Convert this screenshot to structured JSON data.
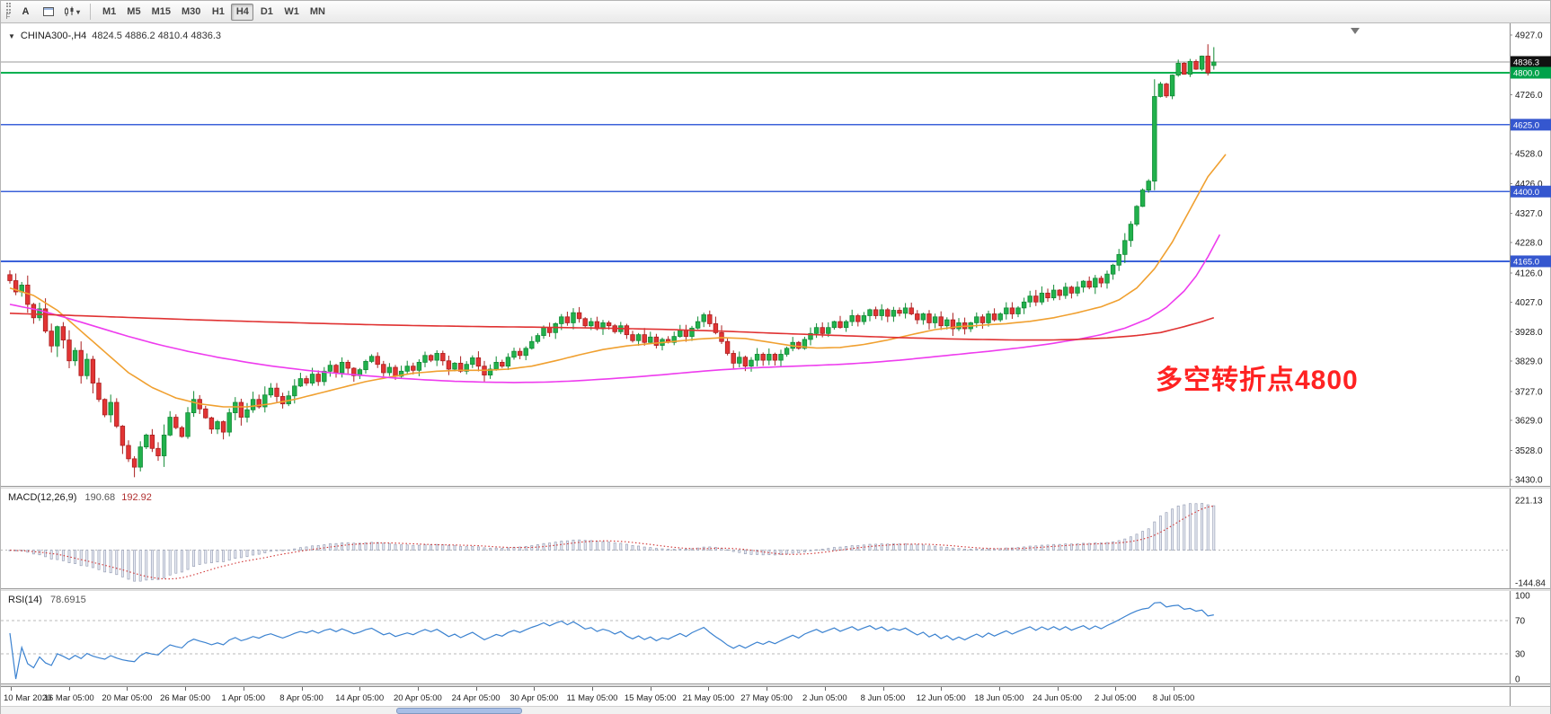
{
  "toolbar": {
    "grip_label": "F",
    "text_tool_label": "A",
    "timeframes": [
      "M1",
      "M5",
      "M15",
      "M30",
      "H1",
      "H4",
      "D1",
      "W1",
      "MN"
    ],
    "active_timeframe": "H4"
  },
  "chart": {
    "symbol_title": "CHINA300-,H4",
    "ohlc_text": "4824.5 4886.2 4810.4 4836.3",
    "annotation": {
      "text": "多空转折点4800",
      "color": "#ff2222"
    }
  },
  "macd_panel": {
    "label": "MACD(12,26,9)",
    "value_main": "190.68",
    "value_signal": "192.92",
    "axis_max": "221.13",
    "axis_min": "-144.84"
  },
  "rsi_panel": {
    "label": "RSI(14)",
    "value": "78.6915",
    "axis_labels": [
      "100",
      "70",
      "30",
      "0"
    ]
  },
  "chart_data": {
    "type": "candlestick",
    "symbol": "CHINA300-",
    "timeframe": "H4",
    "last_ohlc": {
      "open": 4824.5,
      "high": 4886.2,
      "low": 4810.4,
      "close": 4836.3
    },
    "open_first": 4120,
    "y_axis": {
      "max": 4927,
      "min": 3430,
      "ticks": [
        "4927.0",
        "4826.0",
        "4726.0",
        "4625.0",
        "4528.0",
        "4426.0",
        "4327.0",
        "4228.0",
        "4126.0",
        "4027.0",
        "3928.0",
        "3829.0",
        "3727.0",
        "3629.0",
        "3528.0",
        "3430.0"
      ]
    },
    "x_labels": [
      "10 Mar 2020",
      "16 Mar 05:00",
      "20 Mar 05:00",
      "26 Mar 05:00",
      "1 Apr 05:00",
      "8 Apr 05:00",
      "14 Apr 05:00",
      "20 Apr 05:00",
      "24 Apr 05:00",
      "30 Apr 05:00",
      "11 May 05:00",
      "15 May 05:00",
      "21 May 05:00",
      "27 May 05:00",
      "2 Jun 05:00",
      "8 Jun 05:00",
      "12 Jun 05:00",
      "18 Jun 05:00",
      "24 Jun 05:00",
      "2 Jul 05:00",
      "8 Jul 05:00"
    ],
    "closes": [
      4100,
      4062,
      4085,
      4020,
      3975,
      4005,
      3930,
      3880,
      3945,
      3900,
      3830,
      3865,
      3780,
      3835,
      3755,
      3700,
      3648,
      3690,
      3610,
      3545,
      3500,
      3472,
      3540,
      3580,
      3535,
      3510,
      3580,
      3640,
      3605,
      3575,
      3655,
      3700,
      3668,
      3638,
      3600,
      3625,
      3590,
      3655,
      3690,
      3640,
      3665,
      3700,
      3675,
      3715,
      3738,
      3710,
      3685,
      3712,
      3745,
      3770,
      3755,
      3785,
      3760,
      3795,
      3815,
      3790,
      3825,
      3805,
      3780,
      3800,
      3828,
      3845,
      3818,
      3790,
      3808,
      3778,
      3795,
      3812,
      3798,
      3825,
      3848,
      3832,
      3855,
      3830,
      3802,
      3822,
      3795,
      3818,
      3840,
      3812,
      3782,
      3802,
      3825,
      3812,
      3842,
      3862,
      3848,
      3872,
      3895,
      3915,
      3942,
      3925,
      3955,
      3978,
      3958,
      3992,
      3972,
      3948,
      3962,
      3938,
      3958,
      3948,
      3928,
      3948,
      3918,
      3898,
      3918,
      3892,
      3910,
      3882,
      3902,
      3892,
      3912,
      3932,
      3912,
      3940,
      3962,
      3985,
      3955,
      3925,
      3895,
      3855,
      3822,
      3842,
      3812,
      3832,
      3852,
      3832,
      3852,
      3832,
      3852,
      3872,
      3892,
      3872,
      3902,
      3922,
      3942,
      3922,
      3942,
      3962,
      3942,
      3962,
      3982,
      3962,
      3982,
      4002,
      3982,
      4002,
      3980,
      4000,
      3990,
      4008,
      3988,
      3968,
      3988,
      3958,
      3978,
      3948,
      3968,
      3938,
      3958,
      3938,
      3958,
      3978,
      3958,
      3988,
      3968,
      3988,
      4008,
      3988,
      4008,
      4028,
      4048,
      4028,
      4058,
      4042,
      4068,
      4050,
      4078,
      4058,
      4078,
      4098,
      4078,
      4108,
      4092,
      4122,
      4152,
      4188,
      4235,
      4290,
      4350,
      4405,
      4435,
      4720,
      4762,
      4722,
      4792,
      4832,
      4795,
      4838,
      4812,
      4856,
      4800,
      4836.3
    ],
    "hlines": [
      {
        "price": 4836.3,
        "label": "4836.3",
        "type": "current",
        "line_color": "#999999",
        "badge_color": "#111111"
      },
      {
        "price": 4800,
        "label": "4800.0",
        "type": "support",
        "line_color": "#00b050",
        "badge_color": "#00a24a"
      },
      {
        "price": 4625,
        "label": "4625.0",
        "type": "level",
        "line_color": "#3b62d9",
        "badge_color": "#3557cf"
      },
      {
        "price": 4400,
        "label": "4400.0",
        "type": "level",
        "line_color": "#3b62d9",
        "badge_color": "#3557cf"
      },
      {
        "price": 4165,
        "label": "4165.0",
        "type": "level",
        "line_color": "#3b62d9",
        "badge_color": "#3557cf"
      }
    ],
    "moving_averages": [
      {
        "name": "ma-fast",
        "color": "#f0a030",
        "points": [
          [
            0,
            4075
          ],
          [
            4,
            4050
          ],
          [
            8,
            4000
          ],
          [
            12,
            3930
          ],
          [
            16,
            3860
          ],
          [
            20,
            3790
          ],
          [
            24,
            3740
          ],
          [
            28,
            3705
          ],
          [
            32,
            3685
          ],
          [
            36,
            3675
          ],
          [
            40,
            3675
          ],
          [
            44,
            3685
          ],
          [
            48,
            3700
          ],
          [
            52,
            3720
          ],
          [
            56,
            3740
          ],
          [
            60,
            3760
          ],
          [
            64,
            3775
          ],
          [
            68,
            3788
          ],
          [
            72,
            3795
          ],
          [
            76,
            3798
          ],
          [
            80,
            3798
          ],
          [
            84,
            3802
          ],
          [
            88,
            3812
          ],
          [
            92,
            3830
          ],
          [
            96,
            3850
          ],
          [
            100,
            3868
          ],
          [
            104,
            3880
          ],
          [
            108,
            3888
          ],
          [
            112,
            3895
          ],
          [
            116,
            3903
          ],
          [
            120,
            3908
          ],
          [
            124,
            3905
          ],
          [
            128,
            3893
          ],
          [
            132,
            3880
          ],
          [
            136,
            3873
          ],
          [
            140,
            3875
          ],
          [
            144,
            3885
          ],
          [
            148,
            3900
          ],
          [
            152,
            3918
          ],
          [
            156,
            3935
          ],
          [
            160,
            3945
          ],
          [
            164,
            3950
          ],
          [
            168,
            3955
          ],
          [
            172,
            3963
          ],
          [
            176,
            3975
          ],
          [
            180,
            3992
          ],
          [
            184,
            4012
          ],
          [
            187,
            4035
          ],
          [
            190,
            4075
          ],
          [
            193,
            4140
          ],
          [
            196,
            4230
          ],
          [
            199,
            4340
          ],
          [
            202,
            4450
          ],
          [
            205,
            4525
          ]
        ]
      },
      {
        "name": "ma-mid",
        "color": "#ee3cee",
        "points": [
          [
            0,
            4020
          ],
          [
            5,
            4000
          ],
          [
            10,
            3972
          ],
          [
            15,
            3942
          ],
          [
            20,
            3912
          ],
          [
            25,
            3885
          ],
          [
            30,
            3862
          ],
          [
            35,
            3842
          ],
          [
            40,
            3825
          ],
          [
            45,
            3810
          ],
          [
            50,
            3798
          ],
          [
            55,
            3788
          ],
          [
            60,
            3780
          ],
          [
            65,
            3772
          ],
          [
            70,
            3766
          ],
          [
            75,
            3761
          ],
          [
            80,
            3758
          ],
          [
            85,
            3757
          ],
          [
            90,
            3758
          ],
          [
            95,
            3762
          ],
          [
            100,
            3768
          ],
          [
            105,
            3775
          ],
          [
            110,
            3783
          ],
          [
            115,
            3792
          ],
          [
            120,
            3800
          ],
          [
            125,
            3806
          ],
          [
            130,
            3810
          ],
          [
            135,
            3814
          ],
          [
            140,
            3818
          ],
          [
            145,
            3824
          ],
          [
            150,
            3832
          ],
          [
            155,
            3842
          ],
          [
            160,
            3852
          ],
          [
            165,
            3862
          ],
          [
            170,
            3873
          ],
          [
            175,
            3886
          ],
          [
            180,
            3902
          ],
          [
            184,
            3918
          ],
          [
            188,
            3940
          ],
          [
            192,
            3972
          ],
          [
            195,
            4010
          ],
          [
            198,
            4065
          ],
          [
            200,
            4115
          ],
          [
            202,
            4180
          ],
          [
            204,
            4255
          ]
        ]
      },
      {
        "name": "ma-slow",
        "color": "#e03232",
        "points": [
          [
            0,
            3990
          ],
          [
            10,
            3983
          ],
          [
            20,
            3976
          ],
          [
            30,
            3969
          ],
          [
            40,
            3963
          ],
          [
            50,
            3957
          ],
          [
            60,
            3952
          ],
          [
            70,
            3948
          ],
          [
            80,
            3945
          ],
          [
            90,
            3943
          ],
          [
            100,
            3940
          ],
          [
            110,
            3936
          ],
          [
            120,
            3930
          ],
          [
            130,
            3922
          ],
          [
            140,
            3915
          ],
          [
            150,
            3908
          ],
          [
            160,
            3903
          ],
          [
            170,
            3900
          ],
          [
            175,
            3900
          ],
          [
            180,
            3902
          ],
          [
            185,
            3907
          ],
          [
            190,
            3915
          ],
          [
            194,
            3925
          ],
          [
            198,
            3945
          ],
          [
            201,
            3962
          ],
          [
            203,
            3975
          ]
        ]
      }
    ],
    "candle_colors": {
      "bull": "#21b14c",
      "bull_border": "#128a36",
      "bear": "#e23434",
      "bear_border": "#aa1f1f"
    },
    "macd": {
      "fast": 12,
      "slow": 26,
      "signal": 9,
      "axis_max": 221.13,
      "axis_min": -144.84,
      "hist_color": "#98a0b6",
      "signal_color": "#d03030"
    },
    "rsi": {
      "period": 14,
      "levels": [
        70,
        30
      ],
      "line_color": "#3b82d0"
    }
  }
}
